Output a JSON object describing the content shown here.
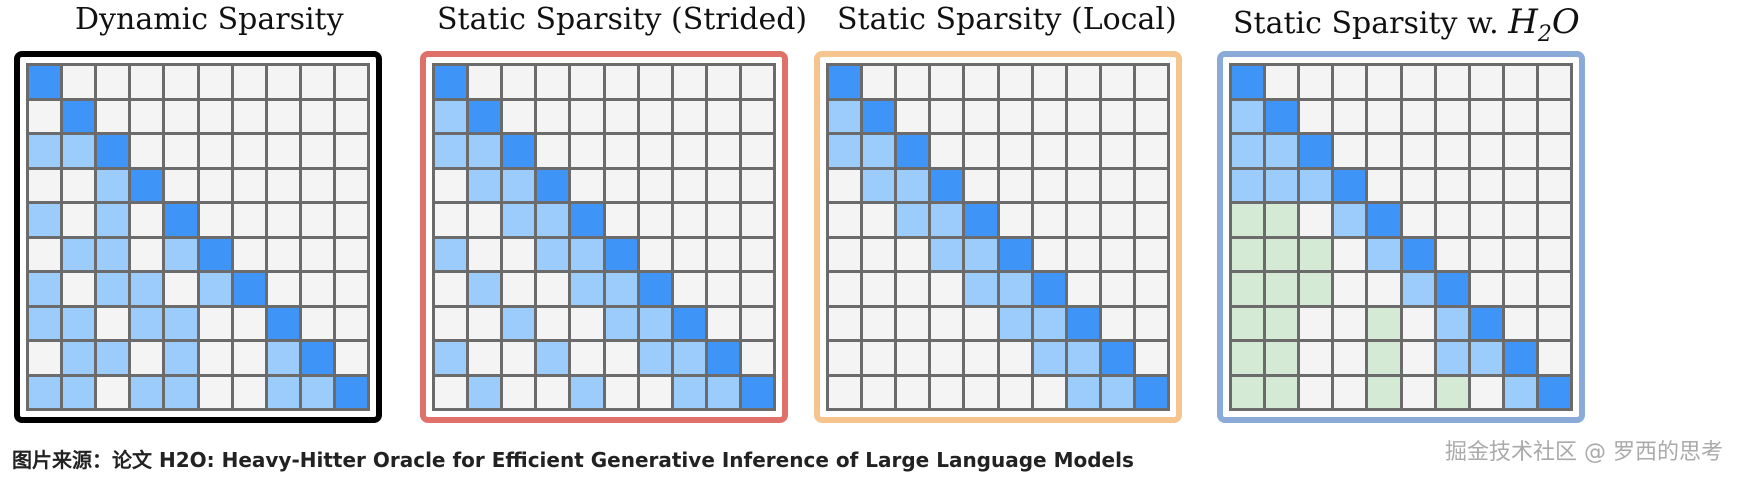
{
  "panels": [
    {
      "title": "Dynamic Sparsity",
      "border_color": "#000000",
      "rows": [
        "D.........",
        ".D........",
        "LLD.......",
        "..LD......",
        "L.L.D.....",
        ".LL.LD....",
        "L.LL.LD...",
        "LL.LL..D..",
        ".LL.L..LD.",
        "LL.LL..LLD"
      ]
    },
    {
      "title": "Static Sparsity (Strided)",
      "border_color": "#e0706a",
      "rows": [
        "D.........",
        "LD........",
        "LLD.......",
        ".LLD......",
        "..LLD.....",
        "L..LLD....",
        ".L..LLD...",
        "..L..LLD..",
        "L..L..LLD.",
        ".L..L..LLD"
      ]
    },
    {
      "title": "Static Sparsity (Local)",
      "border_color": "#f6c48f",
      "rows": [
        "D.........",
        "LD........",
        "LLD.......",
        ".LLD......",
        "..LLD.....",
        "...LLD....",
        "....LLD...",
        ".....LLD..",
        "......LLD.",
        ".......LLD"
      ]
    },
    {
      "title_prefix": "Static Sparsity w. ",
      "title_math_base": "H",
      "title_math_sub": "2",
      "title_math_tail": "O",
      "border_color": "#8aaad8",
      "rows": [
        "D.........",
        "LD........",
        "LLD.......",
        "LLLD......",
        "GG.LD.....",
        "GGG.LD....",
        "GGG..LD...",
        "GG..G.LD..",
        "GG..G.LLD.",
        "GG..G.G.LD"
      ]
    }
  ],
  "legend_colors": {
    "diagonal": "#3f95f7",
    "attended": "#9cccfb",
    "heavy_hitter": "#d5ead5",
    "empty": "#f4f4f4",
    "grid_line": "#6b6b6b"
  },
  "caption": "图片来源：论文 H2O: Heavy-Hitter Oracle for Efficient Generative Inference of Large Language Models",
  "watermark": "掘金技术社区 @ 罗西的思考"
}
